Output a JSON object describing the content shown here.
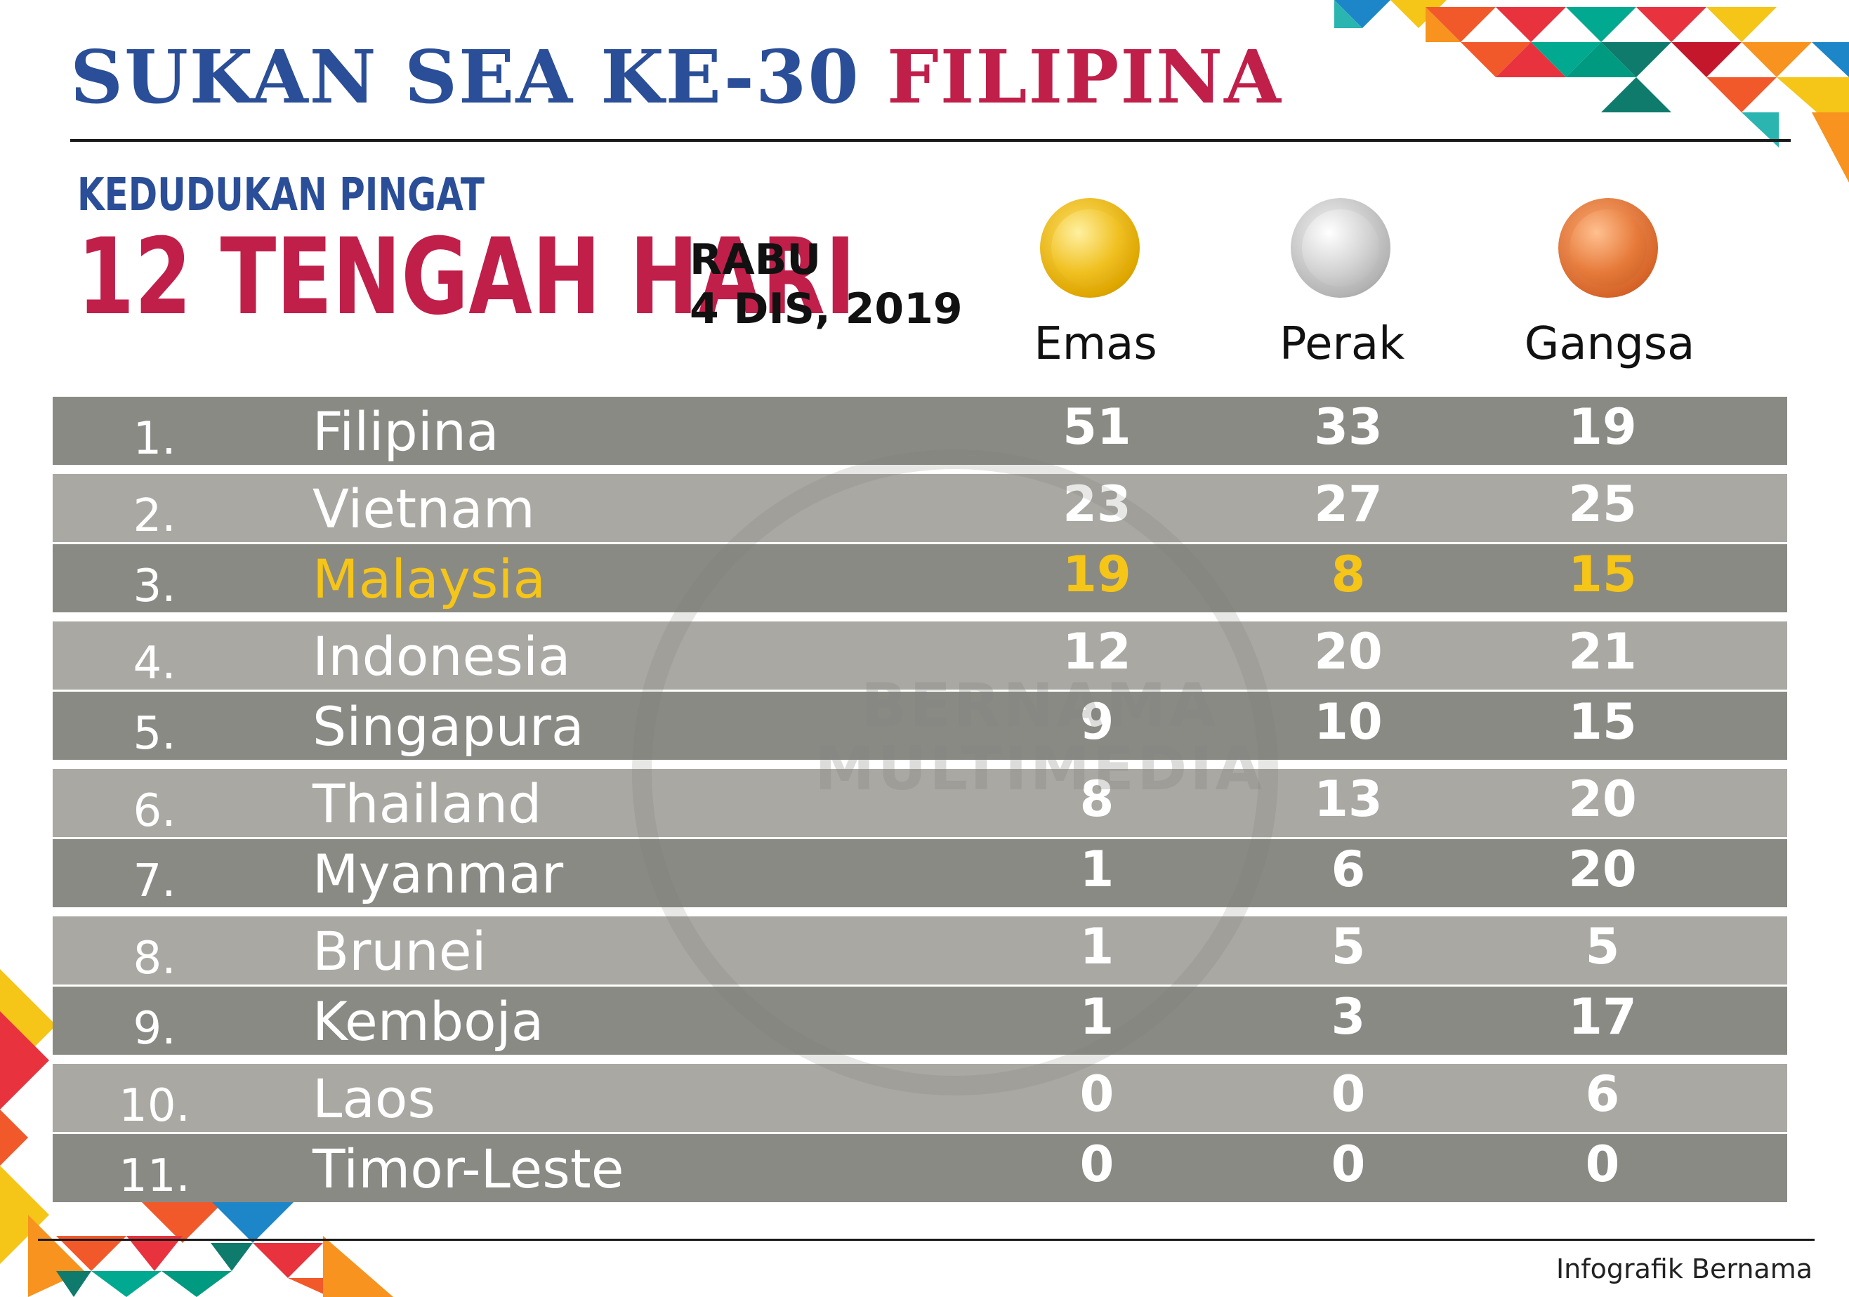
{
  "header": {
    "title_main": "SUKAN SEA KE-30 ",
    "title_accent": "FILIPINA",
    "subtitle": "KEDUDUKAN PINGAT",
    "time": "12 TENGAH HARI",
    "day": "RABU",
    "date": "4 DIS, 2019"
  },
  "medals": {
    "gold_label": "Emas",
    "silver_label": "Perak",
    "bronze_label": "Gangsa"
  },
  "colors": {
    "title_blue": "#2a4e97",
    "accent_red": "#c01f4a",
    "highlight_yellow": "#f5c518",
    "row_dark": "#8a8a85",
    "row_light": "#a9a8a3"
  },
  "watermark": {
    "line1": "BERNAMA",
    "line2": "MULTIMEDIA"
  },
  "table": {
    "rows": [
      {
        "rank": "1.",
        "country": "Filipina",
        "gold": "51",
        "silver": "33",
        "bronze": "19"
      },
      {
        "rank": "2.",
        "country": "Vietnam",
        "gold": "23",
        "silver": "27",
        "bronze": "25"
      },
      {
        "rank": "3.",
        "country": "Malaysia",
        "gold": "19",
        "silver": "8",
        "bronze": "15"
      },
      {
        "rank": "4.",
        "country": "Indonesia",
        "gold": "12",
        "silver": "20",
        "bronze": "21"
      },
      {
        "rank": "5.",
        "country": "Singapura",
        "gold": "9",
        "silver": "10",
        "bronze": "15"
      },
      {
        "rank": "6.",
        "country": "Thailand",
        "gold": "8",
        "silver": "13",
        "bronze": "20"
      },
      {
        "rank": "7.",
        "country": "Myanmar",
        "gold": "1",
        "silver": "6",
        "bronze": "20"
      },
      {
        "rank": "8.",
        "country": "Brunei",
        "gold": "1",
        "silver": "5",
        "bronze": "5"
      },
      {
        "rank": "9.",
        "country": "Kemboja",
        "gold": "1",
        "silver": "3",
        "bronze": "17"
      },
      {
        "rank": "10.",
        "country": "Laos",
        "gold": "0",
        "silver": "0",
        "bronze": "6"
      },
      {
        "rank": "11.",
        "country": "Timor-Leste",
        "gold": "0",
        "silver": "0",
        "bronze": "0"
      }
    ]
  },
  "footer": {
    "credit": "Infografik Bernama"
  }
}
